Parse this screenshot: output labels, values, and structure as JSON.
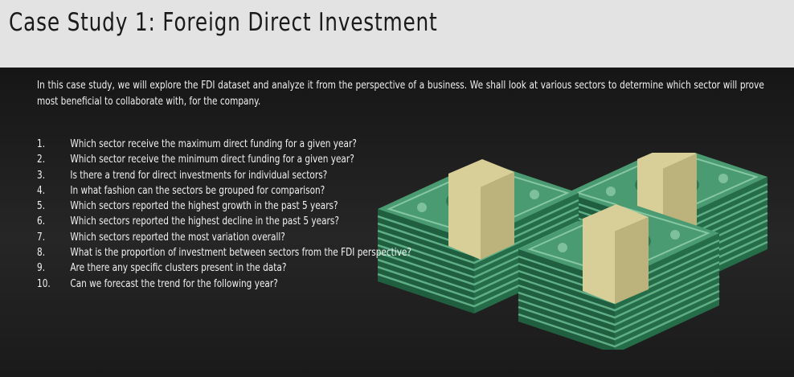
{
  "slide": {
    "title": "Case Study 1: Foreign Direct Investment",
    "intro": "In this case study, we will explore the FDI dataset and analyze it from the perspective of a business. We shall look at various sectors to determine which sector will prove most beneficial to collaborate with, for the company.",
    "questions": [
      {
        "num": "1.",
        "text": "Which sector receive the maximum direct funding for a given year?"
      },
      {
        "num": "2.",
        "text": "Which sector receive the minimum direct funding for a given year?"
      },
      {
        "num": "3.",
        "text": "Is there a trend for direct investments for individual sectors?"
      },
      {
        "num": "4.",
        "text": "In what fashion can the sectors be grouped for comparison?"
      },
      {
        "num": "5.",
        "text": "Which sectors reported the highest growth in the past 5 years?"
      },
      {
        "num": "6.",
        "text": "Which sectors reported the highest decline in the past 5 years?"
      },
      {
        "num": "7.",
        "text": "Which sectors reported the most variation overall?"
      },
      {
        "num": "8.",
        "text": "What is the proportion of investment between sectors from the FDI perspective?"
      },
      {
        "num": "9.",
        "text": "Are there any specific clusters present in the data?"
      },
      {
        "num": "10.",
        "text": "Can we forecast the trend for the following year?"
      }
    ]
  },
  "illustration": {
    "name": "money-stacks-illustration",
    "colors": {
      "bill": "#4a9a72",
      "bill_dark": "#2f7a55",
      "bill_edge": "#1f5e3f",
      "band": "#d8cf98",
      "band_dark": "#bcb27c"
    }
  }
}
